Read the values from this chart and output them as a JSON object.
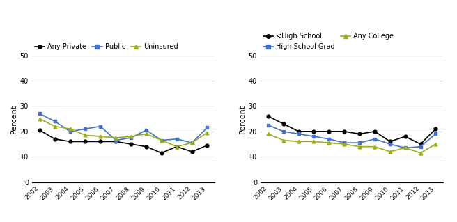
{
  "years": [
    2002,
    2003,
    2004,
    2005,
    2006,
    2007,
    2008,
    2009,
    2010,
    2011,
    2012,
    2013
  ],
  "left": {
    "Any Private": [
      20.5,
      17,
      16,
      16,
      16,
      16,
      15,
      14,
      11.5,
      14,
      12,
      14.5
    ],
    "Public": [
      27,
      24,
      20,
      21,
      22,
      16.5,
      17.5,
      20.5,
      16.5,
      17,
      15.5,
      21.5
    ],
    "Uninsured": [
      25,
      22,
      21,
      18.5,
      18,
      17.5,
      18,
      19,
      16.5,
      14,
      15.5,
      19.5
    ]
  },
  "right": {
    "<High School": [
      26,
      23,
      20,
      20,
      20,
      20,
      19,
      20,
      16,
      18,
      15,
      21
    ],
    "High School Grad": [
      22.5,
      20,
      19,
      18,
      17,
      15.5,
      15.5,
      17,
      15,
      13.5,
      14,
      19
    ],
    "Any College": [
      19,
      16.5,
      16,
      16,
      15.5,
      15,
      14,
      14,
      12,
      13.5,
      11.5,
      15
    ]
  },
  "left_series": [
    "Any Private",
    "Public",
    "Uninsured"
  ],
  "right_series": [
    "<High School",
    "High School Grad",
    "Any College"
  ],
  "left_colors": {
    "Any Private": "#000000",
    "Public": "#4472c4",
    "Uninsured": "#9aaf1a"
  },
  "right_colors": {
    "<High School": "#000000",
    "High School Grad": "#4472c4",
    "Any College": "#9aaf1a"
  },
  "left_markers": {
    "Any Private": "o",
    "Public": "s",
    "Uninsured": "^"
  },
  "right_markers": {
    "<High School": "o",
    "High School Grad": "s",
    "Any College": "^"
  },
  "ylim": [
    0,
    50
  ],
  "yticks": [
    0,
    10,
    20,
    30,
    40,
    50
  ],
  "ylabel": "Percent"
}
